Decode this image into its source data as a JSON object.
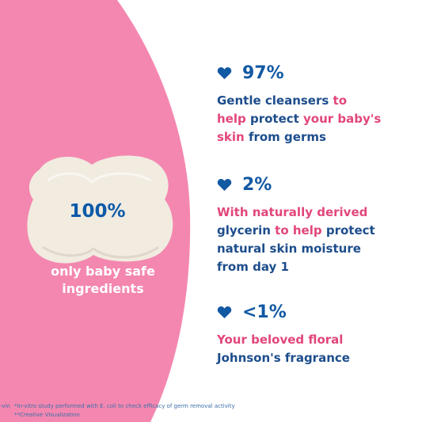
{
  "colors": {
    "pink_panel": "#f487b0",
    "navy": "#1d4d8c",
    "accent_pink": "#e2467a",
    "heart_blue": "#1259a3"
  },
  "soap": {
    "percent": "100%",
    "caption_line1": "only baby safe",
    "caption_line2": "ingredients"
  },
  "stats": [
    {
      "icon": "heart-icon",
      "value": "97%",
      "lines": [
        [
          {
            "t": "Gentle cleansers ",
            "c": "blue"
          },
          {
            "t": "to",
            "c": "pink"
          }
        ],
        [
          {
            "t": "help ",
            "c": "pink"
          },
          {
            "t": "protect ",
            "c": "blue"
          },
          {
            "t": "your baby's",
            "c": "pink"
          }
        ],
        [
          {
            "t": "skin ",
            "c": "pink"
          },
          {
            "t": "from germs",
            "c": "blue"
          }
        ]
      ]
    },
    {
      "icon": "heart-icon",
      "value": "2%",
      "lines": [
        [
          {
            "t": "With naturally derived",
            "c": "pink"
          }
        ],
        [
          {
            "t": "glycerin ",
            "c": "blue"
          },
          {
            "t": "to help ",
            "c": "pink"
          },
          {
            "t": "protect",
            "c": "blue"
          }
        ],
        [
          {
            "t": "natural skin moisture",
            "c": "blue"
          }
        ],
        [
          {
            "t": "from day 1",
            "c": "blue"
          }
        ]
      ]
    },
    {
      "icon": "heart-icon",
      "value": "<1%",
      "lines": [
        [
          {
            "t": "Your beloved floral",
            "c": "pink"
          }
        ],
        [
          {
            "t": "Johnson's fragrance",
            "c": "blue"
          }
        ]
      ]
    }
  ],
  "footnotes": {
    "left_fragment": "-vin",
    "line1": "*In-vitro study performed with E. coli to check efficacy of germ removal activity",
    "line2": "**Creative Visualization"
  }
}
